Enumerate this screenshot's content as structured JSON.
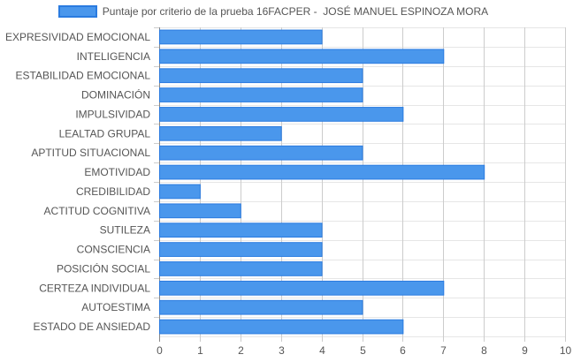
{
  "chart_data": {
    "type": "bar",
    "orientation": "horizontal",
    "categories": [
      "EXPRESIVIDAD EMOCIONAL",
      "INTELIGENCIA",
      "ESTABILIDAD EMOCIONAL",
      "DOMINACIÓN",
      "IMPULSIVIDAD",
      "LEALTAD GRUPAL",
      "APTITUD SITUACIONAL",
      "EMOTIVIDAD",
      "CREDIBILIDAD",
      "ACTITUD COGNITIVA",
      "SUTILEZA",
      "CONSCIENCIA",
      "POSICIÓN SOCIAL",
      "CERTEZA INDIVIDUAL",
      "AUTOESTIMA",
      "ESTADO DE ANSIEDAD"
    ],
    "series": [
      {
        "name": "Puntaje por criterio de la prueba 16FACPER -  JOSÉ MANUEL ESPINOZA MORA",
        "values": [
          4,
          7,
          5,
          5,
          6,
          3,
          5,
          8,
          1,
          2,
          4,
          4,
          4,
          7,
          5,
          6
        ],
        "color": "#4a97ec",
        "border_color": "#2a7be0"
      }
    ],
    "xlim": [
      0,
      10
    ],
    "x_ticks": [
      "0",
      "1",
      "2",
      "3",
      "4",
      "5",
      "6",
      "7",
      "8",
      "9",
      "10"
    ],
    "grid": true,
    "legend_position": "top"
  }
}
